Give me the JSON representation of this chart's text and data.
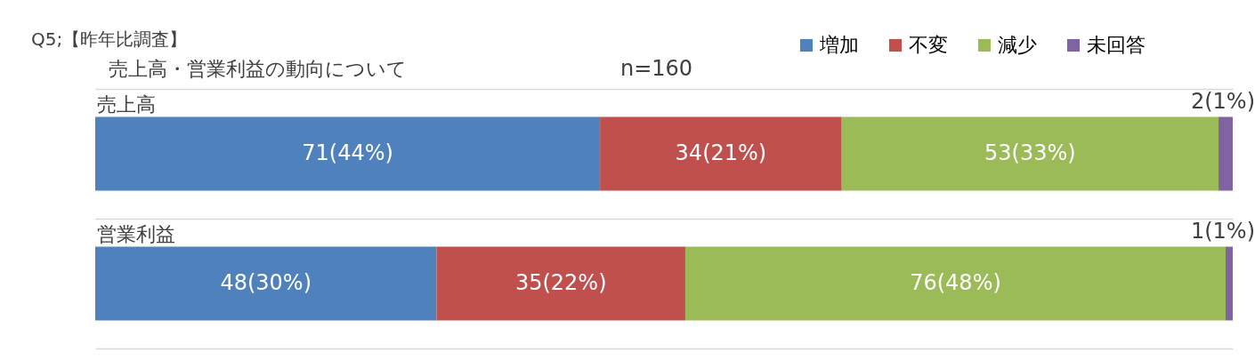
{
  "chart_data": {
    "type": "bar",
    "orientation": "horizontal",
    "stacked": true,
    "title": "Q5;【昨年比調査】",
    "subtitle": "売上高・営業利益の動向について",
    "annotations": [
      "n=160"
    ],
    "categories": [
      "売上高",
      "営業利益"
    ],
    "xlim": [
      0,
      160
    ],
    "grid": "y",
    "legend": "top right",
    "series": [
      {
        "name": "増加",
        "color": "#4f81bd",
        "values": [
          71,
          48
        ],
        "value_labels": [
          "71(44%)",
          "48(30%)"
        ]
      },
      {
        "name": "不変",
        "color": "#c0504d",
        "values": [
          34,
          35
        ],
        "value_labels": [
          "34(21%)",
          "35(22%)"
        ]
      },
      {
        "name": "減少",
        "color": "#9bbb59",
        "values": [
          53,
          76
        ],
        "value_labels": [
          "53(33%)",
          "76(48%)"
        ]
      },
      {
        "name": "未回答",
        "color": "#8064a2",
        "values": [
          2,
          1
        ],
        "value_labels": [
          "2(1%)",
          "1(1%)"
        ]
      }
    ]
  }
}
